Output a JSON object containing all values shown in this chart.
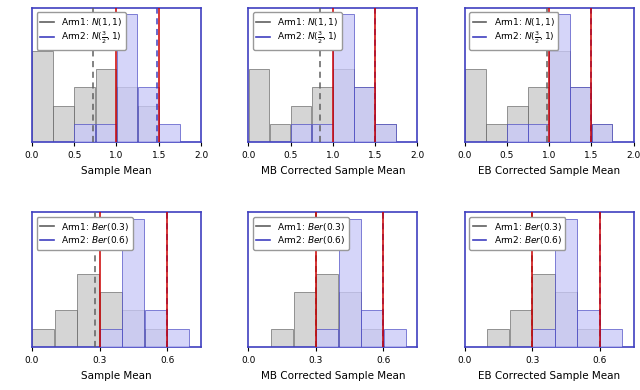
{
  "row1": {
    "arm1_label": "Arm1: $N(1, 1)$",
    "arm2_label": "Arm2: $N(\\frac{3}{2}, 1)$",
    "arm1_true_mean": 1.0,
    "arm2_true_mean": 1.5,
    "xlim": [
      0,
      2
    ],
    "subplot_labels": [
      "Sample Mean",
      "MB Corrected Sample Mean",
      "EB Corrected Sample Mean"
    ],
    "sample": {
      "arm1_heights": [
        5,
        2,
        3,
        4,
        3,
        2,
        0,
        0
      ],
      "arm2_heights": [
        0,
        0,
        1,
        1,
        7,
        3,
        1,
        0
      ],
      "arm1_mean": 0.72,
      "arm2_mean": 1.48
    },
    "mb": {
      "arm1_heights": [
        4,
        1,
        2,
        3,
        4,
        3,
        1,
        0
      ],
      "arm2_heights": [
        0,
        0,
        1,
        1,
        7,
        3,
        1,
        0
      ],
      "arm1_mean": 0.85,
      "arm2_mean": 1.5
    },
    "eb": {
      "arm1_heights": [
        4,
        1,
        2,
        3,
        5,
        3,
        1,
        0
      ],
      "arm2_heights": [
        0,
        0,
        1,
        1,
        7,
        3,
        1,
        0
      ],
      "arm1_mean": 0.97,
      "arm2_mean": 1.5
    }
  },
  "row2": {
    "arm1_label": "Arm1: $Ber(0.3)$",
    "arm2_label": "Arm2: $Ber(0.6)$",
    "arm1_true_mean": 0.3,
    "arm2_true_mean": 0.6,
    "xlim": [
      0,
      0.75
    ],
    "xticks": [
      0,
      0.3,
      0.6
    ],
    "subplot_labels": [
      "Sample Mean",
      "MB Corrected Sample Mean",
      "EB Corrected Sample Mean"
    ],
    "sample": {
      "arm1_heights": [
        1,
        2,
        4,
        3,
        2,
        1,
        0,
        0
      ],
      "arm2_heights": [
        0,
        0,
        0,
        1,
        7,
        2,
        1,
        0
      ],
      "arm1_mean": 0.28,
      "arm2_mean": 0.6
    },
    "mb": {
      "arm1_heights": [
        0,
        1,
        3,
        4,
        3,
        1,
        0,
        0
      ],
      "arm2_heights": [
        0,
        0,
        0,
        1,
        7,
        2,
        1,
        0
      ],
      "arm1_mean": 0.3,
      "arm2_mean": 0.6
    },
    "eb": {
      "arm1_heights": [
        0,
        1,
        2,
        4,
        3,
        1,
        0,
        0
      ],
      "arm2_heights": [
        0,
        0,
        0,
        1,
        7,
        2,
        1,
        0
      ],
      "arm1_mean": 0.3,
      "arm2_mean": 0.6
    }
  },
  "arm1_facecolor": "#c8c8c8",
  "arm1_edgecolor": "#606060",
  "arm2_facecolor": "#c8c8f8",
  "arm2_edgecolor": "#4040c0",
  "true_mean_color": "#cc0000",
  "arm1_mean_color": "#606060",
  "arm2_mean_color": "#4040c0",
  "spine_color": "#4040c0",
  "alpha": 0.75,
  "legend_fontsize": 6.5,
  "xlabel_fontsize": 7.5,
  "tick_fontsize": 6.5
}
